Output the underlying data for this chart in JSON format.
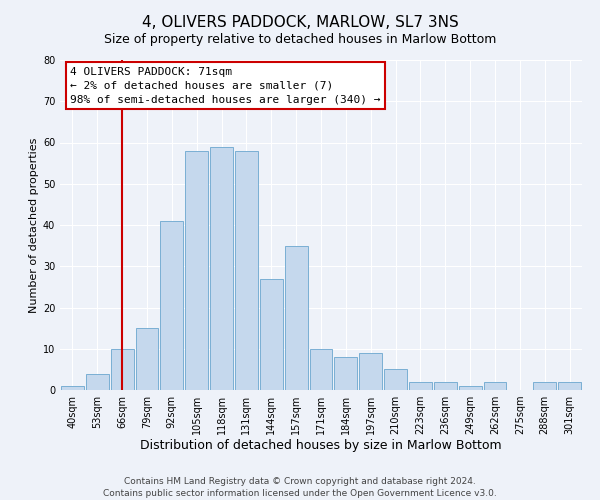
{
  "title": "4, OLIVERS PADDOCK, MARLOW, SL7 3NS",
  "subtitle": "Size of property relative to detached houses in Marlow Bottom",
  "xlabel": "Distribution of detached houses by size in Marlow Bottom",
  "ylabel": "Number of detached properties",
  "bar_labels": [
    "40sqm",
    "53sqm",
    "66sqm",
    "79sqm",
    "92sqm",
    "105sqm",
    "118sqm",
    "131sqm",
    "144sqm",
    "157sqm",
    "171sqm",
    "184sqm",
    "197sqm",
    "210sqm",
    "223sqm",
    "236sqm",
    "249sqm",
    "262sqm",
    "275sqm",
    "288sqm",
    "301sqm"
  ],
  "bar_values": [
    1,
    4,
    10,
    15,
    41,
    58,
    59,
    58,
    27,
    35,
    10,
    8,
    9,
    5,
    2,
    2,
    1,
    2,
    0,
    2,
    2
  ],
  "bar_color": "#c5d8ed",
  "bar_edge_color": "#7aafd4",
  "vline_x": 2,
  "vline_color": "#cc0000",
  "ylim": [
    0,
    80
  ],
  "yticks": [
    0,
    10,
    20,
    30,
    40,
    50,
    60,
    70,
    80
  ],
  "annotation_text": "4 OLIVERS PADDOCK: 71sqm\n← 2% of detached houses are smaller (7)\n98% of semi-detached houses are larger (340) →",
  "annotation_box_color": "#ffffff",
  "annotation_box_edge": "#cc0000",
  "footer1": "Contains HM Land Registry data © Crown copyright and database right 2024.",
  "footer2": "Contains public sector information licensed under the Open Government Licence v3.0.",
  "title_fontsize": 11,
  "subtitle_fontsize": 9,
  "xlabel_fontsize": 9,
  "ylabel_fontsize": 8,
  "tick_fontsize": 7,
  "annotation_fontsize": 8,
  "footer_fontsize": 6.5,
  "background_color": "#eef2f9"
}
